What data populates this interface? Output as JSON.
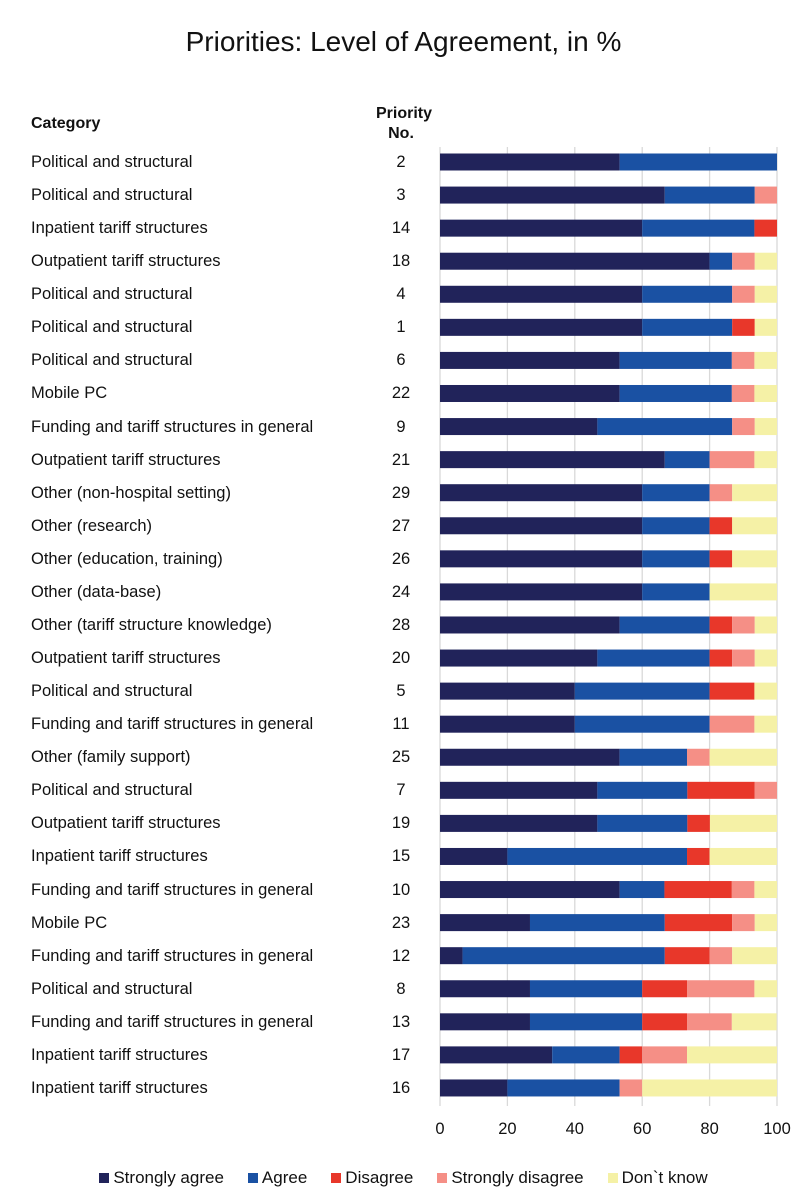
{
  "chart_data": {
    "type": "bar",
    "orientation": "horizontal",
    "stacked": true,
    "title": "Priorities: Level of Agreement, in %",
    "column_headers": {
      "category": "Category",
      "priority_no": "Priority No."
    },
    "xlabel": "",
    "ylabel": "",
    "xlim": [
      0,
      100
    ],
    "xticks": [
      0,
      20,
      40,
      60,
      80,
      100
    ],
    "grid": true,
    "legend_position": "bottom",
    "categories": [
      {
        "category": "Political and structural",
        "priority_no": "2"
      },
      {
        "category": "Political and structural",
        "priority_no": "3"
      },
      {
        "category": "Inpatient tariff structures",
        "priority_no": "14"
      },
      {
        "category": "Outpatient tariff structures",
        "priority_no": "18"
      },
      {
        "category": "Political and structural",
        "priority_no": "4"
      },
      {
        "category": "Political and structural",
        "priority_no": "1"
      },
      {
        "category": "Political and structural",
        "priority_no": "6"
      },
      {
        "category": "Mobile PC",
        "priority_no": "22"
      },
      {
        "category": "Funding and tariff structures in general",
        "priority_no": "9"
      },
      {
        "category": "Outpatient tariff structures",
        "priority_no": "21"
      },
      {
        "category": "Other (non-hospital setting)",
        "priority_no": "29"
      },
      {
        "category": "Other (research)",
        "priority_no": "27"
      },
      {
        "category": "Other (education, training)",
        "priority_no": "26"
      },
      {
        "category": "Other (data-base)",
        "priority_no": "24"
      },
      {
        "category": "Other (tariff structure knowledge)",
        "priority_no": "28"
      },
      {
        "category": "Outpatient tariff structures",
        "priority_no": "20"
      },
      {
        "category": "Political and structural",
        "priority_no": "5"
      },
      {
        "category": "Funding and tariff structures in general",
        "priority_no": "11"
      },
      {
        "category": "Other (family support)",
        "priority_no": "25"
      },
      {
        "category": "Political and structural",
        "priority_no": "7"
      },
      {
        "category": "Outpatient tariff structures",
        "priority_no": "19"
      },
      {
        "category": "Inpatient tariff structures",
        "priority_no": "15"
      },
      {
        "category": "Funding and tariff structures in general",
        "priority_no": "10"
      },
      {
        "category": "Mobile PC",
        "priority_no": "23"
      },
      {
        "category": "Funding and tariff structures in general",
        "priority_no": "12"
      },
      {
        "category": "Political and structural",
        "priority_no": "8"
      },
      {
        "category": "Funding and tariff structures in general",
        "priority_no": "13"
      },
      {
        "category": "Inpatient tariff structures",
        "priority_no": "17"
      },
      {
        "category": "Inpatient tariff structures",
        "priority_no": "16"
      }
    ],
    "series": [
      {
        "name": "Strongly agree",
        "color": "#21235a",
        "values": [
          53.3,
          66.7,
          60,
          80,
          60,
          60,
          53.3,
          53.3,
          46.7,
          66.7,
          60,
          60,
          60,
          60,
          53.3,
          46.7,
          40,
          40,
          53.3,
          46.7,
          46.7,
          20,
          53.3,
          26.7,
          6.7,
          26.7,
          26.7,
          33.3,
          20
        ]
      },
      {
        "name": "Agree",
        "color": "#1a51a3",
        "values": [
          46.7,
          26.7,
          33.3,
          6.7,
          26.7,
          26.7,
          33.3,
          33.3,
          40,
          13.3,
          20,
          20,
          20,
          20,
          26.7,
          33.3,
          40,
          40,
          20,
          26.7,
          26.7,
          53.3,
          13.3,
          40,
          60,
          33.3,
          33.3,
          20,
          33.3
        ]
      },
      {
        "name": "Disagree",
        "color": "#e8372a",
        "values": [
          0,
          0,
          6.7,
          0,
          0,
          6.7,
          0,
          0,
          0,
          0,
          0,
          6.7,
          6.7,
          0,
          6.7,
          6.7,
          13.3,
          0,
          0,
          20,
          6.7,
          6.7,
          20,
          20,
          13.3,
          13.3,
          13.3,
          6.7,
          0
        ]
      },
      {
        "name": "Strongly disagree",
        "color": "#f58f86",
        "values": [
          0,
          6.7,
          0,
          6.7,
          6.7,
          0,
          6.7,
          6.7,
          6.7,
          13.3,
          6.7,
          0,
          0,
          0,
          6.7,
          6.7,
          0,
          13.3,
          6.7,
          6.7,
          0,
          0,
          6.7,
          6.7,
          6.7,
          20,
          13.3,
          13.3,
          6.7
        ]
      },
      {
        "name": "Don`t know",
        "color": "#f5f1a6",
        "values": [
          0,
          0,
          0,
          6.7,
          6.7,
          6.7,
          6.7,
          6.7,
          6.7,
          6.7,
          13.3,
          13.3,
          13.3,
          20,
          6.7,
          6.7,
          6.7,
          6.7,
          20,
          0,
          20,
          20,
          6.7,
          6.7,
          13.3,
          6.7,
          13.3,
          26.7,
          40
        ]
      }
    ]
  }
}
